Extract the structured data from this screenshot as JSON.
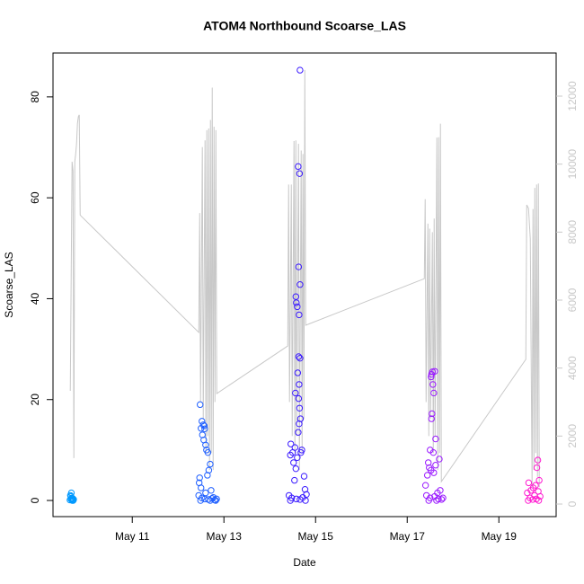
{
  "chart_data": {
    "type": "scatter",
    "title": "ATOM4 Northbound Scoarse_LAS",
    "x_label": "Date",
    "y_label": "Scoarse_LAS",
    "xlim": [
      9.27,
      20.25
    ],
    "xticks": [
      {
        "value": 11,
        "label": "May 11"
      },
      {
        "value": 13,
        "label": "May 13"
      },
      {
        "value": 15,
        "label": "May 15"
      },
      {
        "value": 17,
        "label": "May 17"
      },
      {
        "value": 19,
        "label": "May 19"
      }
    ],
    "ylim": [
      -3.2,
      88.7
    ],
    "yticks": [
      0,
      20,
      40,
      60,
      80
    ],
    "y2lim": [
      -370,
      13269
    ],
    "y2ticks": [
      0,
      2000,
      4000,
      6000,
      8000,
      10000,
      12000
    ],
    "series": [
      {
        "type": "line",
        "axis": "y2",
        "color": "#c8c8c8",
        "x": [
          9.647,
          9.686,
          9.706,
          9.725,
          9.745,
          9.765,
          9.784,
          9.804,
          9.824,
          9.843,
          9.863,
          12.451,
          12.471,
          12.49,
          12.529,
          12.549,
          12.588,
          12.608,
          12.627,
          12.647,
          12.667,
          12.686,
          12.706,
          12.725,
          12.745,
          12.765,
          12.784,
          12.804,
          12.824,
          12.843,
          14.392,
          14.412,
          14.431,
          14.471,
          14.49,
          14.529,
          14.549,
          14.569,
          14.588,
          14.627,
          14.647,
          14.686,
          14.706,
          14.725,
          14.745,
          14.765,
          14.784,
          17.373,
          17.392,
          17.412,
          17.451,
          17.471,
          17.49,
          17.51,
          17.549,
          17.569,
          17.588,
          17.608,
          17.647,
          17.667,
          17.686,
          17.706,
          17.725,
          17.745,
          19.588,
          19.608,
          19.647,
          19.686,
          19.725,
          19.745,
          19.765,
          19.784,
          19.804,
          19.824,
          19.843,
          19.863,
          19.882
        ],
        "values": [
          3330,
          10070,
          9800,
          1350,
          10070,
          10300,
          10600,
          11200,
          11400,
          11450,
          8500,
          5050,
          8560,
          3000,
          10500,
          2500,
          10700,
          1500,
          11000,
          2000,
          11050,
          1000,
          11300,
          1500,
          12250,
          1000,
          11100,
          3000,
          11000,
          3250,
          4650,
          9400,
          3000,
          9400,
          2000,
          10680,
          1500,
          10700,
          2000,
          10600,
          1000,
          10400,
          1500,
          10300,
          2500,
          12770,
          5260,
          6630,
          8970,
          3000,
          8250,
          2000,
          8100,
          2500,
          8000,
          1500,
          8400,
          2000,
          10780,
          1000,
          10790,
          1500,
          11190,
          660,
          4255,
          8800,
          8700,
          7800,
          500,
          8680,
          1000,
          9300,
          1500,
          9400,
          800,
          9430,
          500
        ]
      },
      {
        "color": "#0099ff",
        "x": [
          9.64,
          9.65,
          9.66,
          9.67,
          9.68,
          9.69,
          9.7,
          9.71,
          9.72,
          9.66,
          9.68,
          9.7
        ],
        "values": [
          0.1,
          1,
          0.3,
          1.5,
          0.2,
          0,
          0.4,
          0,
          0.2,
          0.8,
          0.5,
          0.1
        ]
      },
      {
        "color": "#1f5fff",
        "x": [
          12.48,
          12.52,
          12.5,
          12.55,
          12.57,
          12.58,
          12.53,
          12.56,
          12.6,
          12.62,
          12.65,
          12.7,
          12.67,
          12.64,
          12.47,
          12.46,
          12.5,
          12.72,
          12.6,
          12.45,
          12.52,
          12.58,
          12.66,
          12.74,
          12.8,
          12.84,
          12.49,
          12.7,
          12.77,
          12.82
        ],
        "values": [
          19.0,
          15.7,
          14.3,
          15.0,
          14.8,
          14.2,
          13.0,
          12.0,
          11.0,
          10.0,
          9.5,
          7.2,
          6.0,
          5.0,
          4.5,
          3.5,
          2.5,
          2.0,
          1.5,
          1.0,
          0.5,
          0.3,
          0.2,
          0.4,
          0.1,
          0.3,
          0,
          0,
          0.6,
          0
        ]
      },
      {
        "color": "#3a1aff",
        "x": [
          14.66,
          14.62,
          14.65,
          14.63,
          14.66,
          14.57,
          14.58,
          14.6,
          14.64,
          14.63,
          14.66,
          14.61,
          14.64,
          14.56,
          14.63,
          14.65,
          14.67,
          14.64,
          14.62,
          14.46,
          14.45,
          14.5,
          14.55,
          14.6,
          14.7,
          14.68,
          14.52,
          14.57,
          14.54,
          14.75,
          14.77,
          14.42,
          14.48,
          14.58,
          14.66,
          14.72,
          14.8,
          14.45,
          14.78
        ],
        "values": [
          85.3,
          66.2,
          64.8,
          46.3,
          42.8,
          40.4,
          39.2,
          38.4,
          36.8,
          28.5,
          28.2,
          25.3,
          23.0,
          21.3,
          20.2,
          18.3,
          16.2,
          15.2,
          13.5,
          11.2,
          9.0,
          9.5,
          10.5,
          8.5,
          10.0,
          9.5,
          7.5,
          6.3,
          4.0,
          4.8,
          2.2,
          1.0,
          0.5,
          0.3,
          0.2,
          0.6,
          1.2,
          0,
          0
        ]
      },
      {
        "color": "#9a1aff",
        "x": [
          17.55,
          17.53,
          17.6,
          17.52,
          17.56,
          17.58,
          17.54,
          17.53,
          17.62,
          17.7,
          17.5,
          17.57,
          17.46,
          17.48,
          17.52,
          17.58,
          17.62,
          17.44,
          17.4,
          17.72,
          17.66,
          17.42,
          17.5,
          17.6,
          17.68,
          17.75,
          17.78,
          17.47,
          17.64
        ],
        "values": [
          25.5,
          25.0,
          25.6,
          24.5,
          23.0,
          21.3,
          17.2,
          16.2,
          12.2,
          8.2,
          10.0,
          9.5,
          7.5,
          6.5,
          6.0,
          5.5,
          7.0,
          5.0,
          3.0,
          2.0,
          1.5,
          1.0,
          0.5,
          0.8,
          0.3,
          0.2,
          0.5,
          0,
          0
        ]
      },
      {
        "color": "#ff1ad0",
        "x": [
          19.85,
          19.83,
          19.88,
          19.65,
          19.8,
          19.75,
          19.7,
          19.86,
          19.62,
          19.78,
          19.9,
          19.68,
          19.82,
          19.74,
          19.64,
          19.87
        ],
        "values": [
          8.0,
          6.5,
          4.0,
          3.5,
          3.0,
          2.5,
          2.0,
          1.8,
          1.5,
          1.0,
          0.8,
          0.5,
          0.3,
          0.2,
          0,
          0
        ]
      }
    ]
  }
}
